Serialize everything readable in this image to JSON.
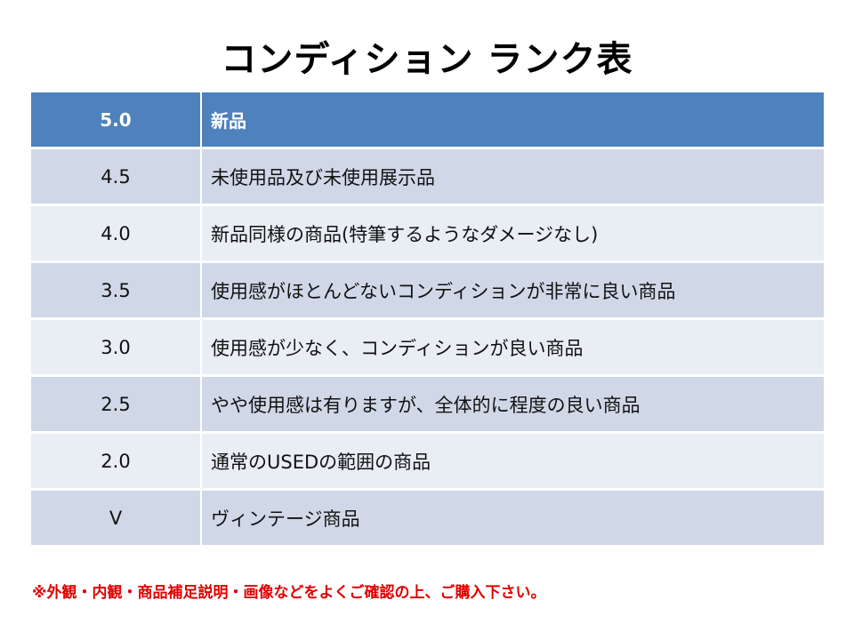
{
  "title": "コンディション ランク表",
  "header": {
    "rank": "5.0",
    "description": "新品"
  },
  "rows": [
    {
      "rank": "4.5",
      "description": "未使用品及び未使用展示品"
    },
    {
      "rank": "4.0",
      "description": "新品同様の商品(特筆するようなダメージなし)"
    },
    {
      "rank": "3.5",
      "description": "使用感がほとんどないコンディションが非常に良い商品"
    },
    {
      "rank": "3.0",
      "description": "使用感が少なく、コンディションが良い商品"
    },
    {
      "rank": "2.5",
      "description": "やや使用感は有りますが、全体的に程度の良い商品"
    },
    {
      "rank": "2.0",
      "description": "通常のUSEDの範囲の商品"
    },
    {
      "rank": "V",
      "description": "ヴィンテージ商品"
    }
  ],
  "note": "※外観・内観・商品補足説明・画像などをよくご確認の上、ご購入下さい。",
  "colors": {
    "header": "#4f81bd",
    "row_dark": "#d0d8e8",
    "row_light": "#e9edf4",
    "note": "#e00000"
  }
}
